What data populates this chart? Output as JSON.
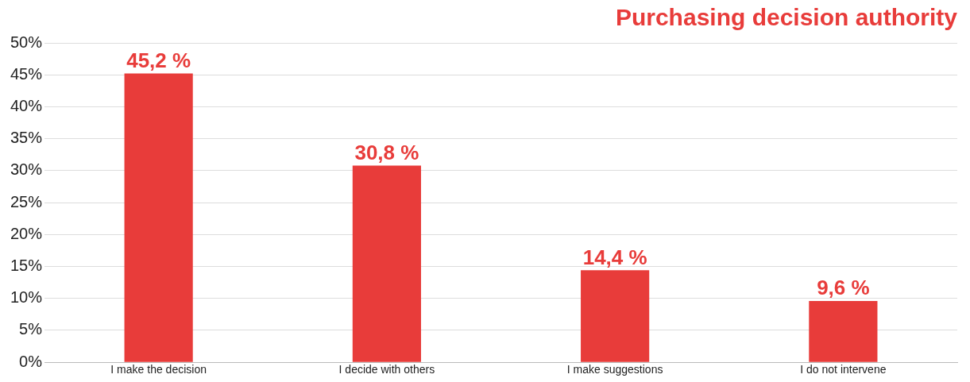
{
  "chart_data": {
    "type": "bar",
    "title": "Purchasing decision authority",
    "categories": [
      "I make the decision",
      "I decide with others",
      "I make suggestions",
      "I do not intervene"
    ],
    "values": [
      45.2,
      30.8,
      14.4,
      9.6
    ],
    "value_labels": [
      "45,2 %",
      "30,8 %",
      "14,4 %",
      "9,6 %"
    ],
    "color": "#e83c3a",
    "ylim": [
      0,
      50
    ],
    "yticks": [
      {
        "value": 0,
        "label": "0%"
      },
      {
        "value": 5,
        "label": "5%"
      },
      {
        "value": 10,
        "label": "10%"
      },
      {
        "value": 15,
        "label": "15%"
      },
      {
        "value": 20,
        "label": "20%"
      },
      {
        "value": 25,
        "label": "25%"
      },
      {
        "value": 30,
        "label": "30%"
      },
      {
        "value": 35,
        "label": "35%"
      },
      {
        "value": 40,
        "label": "40%"
      },
      {
        "value": 45,
        "label": "45%"
      },
      {
        "value": 50,
        "label": "50%"
      }
    ],
    "grid": "y",
    "legend": false
  }
}
